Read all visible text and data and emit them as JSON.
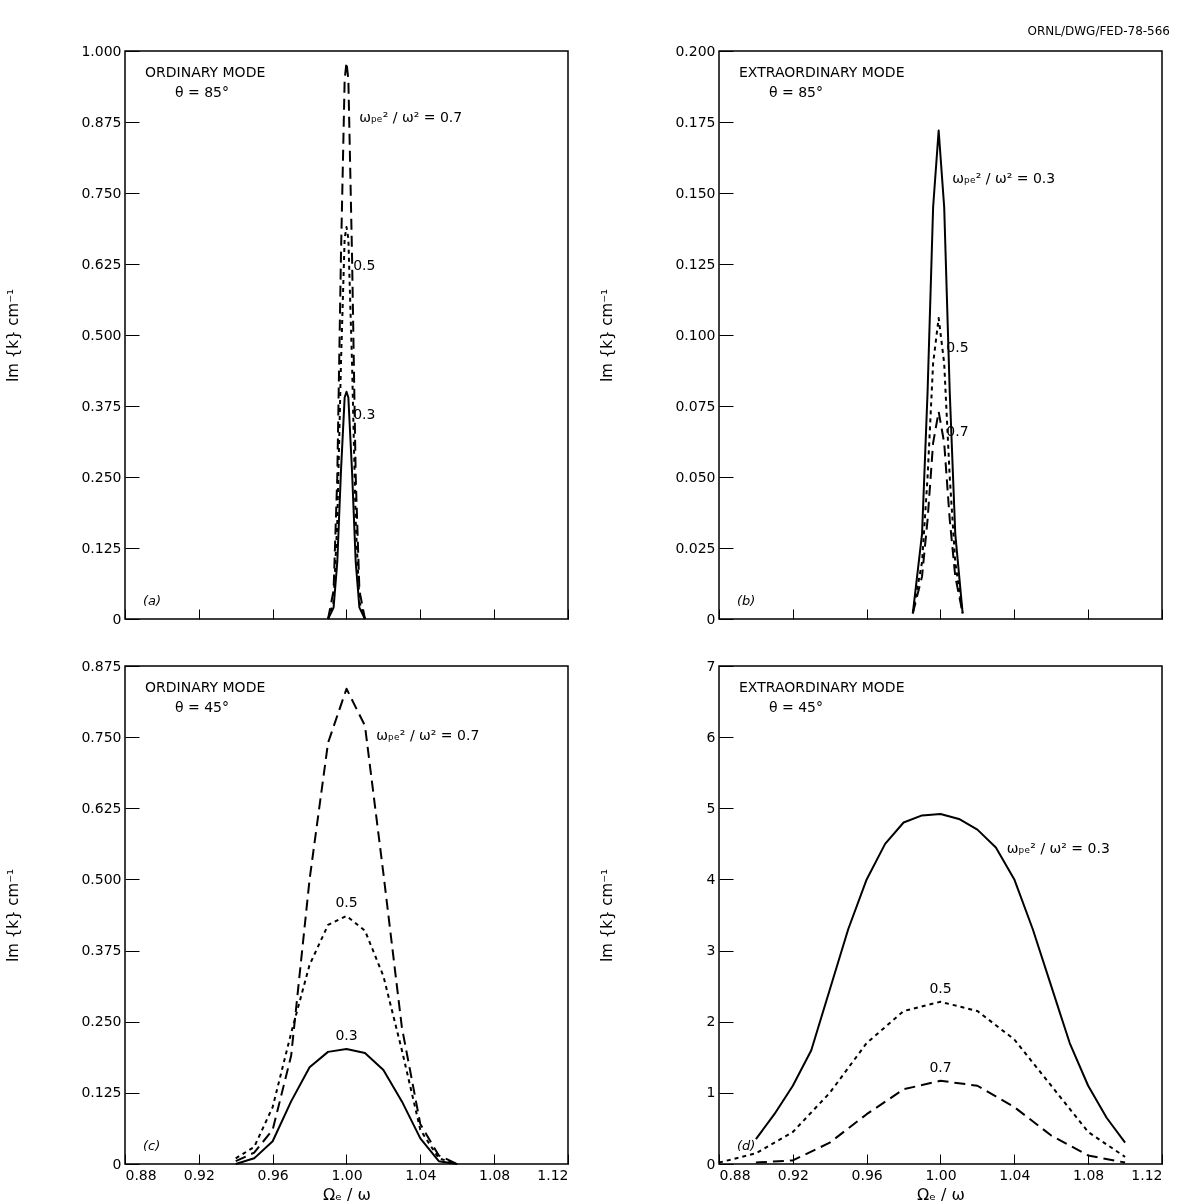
{
  "chart_data": [
    {
      "type": "line",
      "title": "ORDINARY MODE",
      "subtitle": "θ = 85°",
      "ylabel": "Im {k} cm⁻¹",
      "tick_labels": "y",
      "xlim": [
        0.88,
        1.12
      ],
      "xticks": [
        0.88,
        0.92,
        0.96,
        1,
        1.04,
        1.08,
        1.12
      ],
      "ylim": [
        0,
        1
      ],
      "yticks": [
        0,
        0.125,
        {
          "value": 0.25,
          "label": "0.250"
        },
        0.375,
        {
          "value": 0.5,
          "label": "0.500"
        },
        0.625,
        {
          "value": 0.75,
          "label": "0.750"
        },
        0.875,
        {
          "value": 1,
          "label": "1.000"
        }
      ],
      "x": [
        0.99,
        0.993,
        0.995,
        0.997,
        0.999,
        1.0,
        1.001,
        1.003,
        1.005,
        1.007,
        1.01
      ],
      "series": [
        {
          "name": "0.3",
          "color": "#000000",
          "line_style": "solid",
          "values": [
            0,
            0.02,
            0.1,
            0.26,
            0.39,
            0.4,
            0.39,
            0.26,
            0.1,
            0.02,
            0
          ]
        },
        {
          "name": "0.5",
          "color": "#000000",
          "line_style": "dotted",
          "values": [
            0,
            0.03,
            0.17,
            0.45,
            0.67,
            0.69,
            0.67,
            0.45,
            0.17,
            0.03,
            0
          ]
        },
        {
          "name": "ωₚₑ² / ω² = 0.7",
          "color": "#000000",
          "line_style": "dashed",
          "values": [
            0,
            0.05,
            0.25,
            0.64,
            0.95,
            0.98,
            0.95,
            0.64,
            0.25,
            0.05,
            0
          ]
        }
      ],
      "annotations": [
        "(a)"
      ]
    },
    {
      "type": "line",
      "title": "EXTRAORDINARY MODE",
      "subtitle": "θ = 85°",
      "ylabel": "Im {k} cm⁻¹",
      "tick_labels": "y",
      "xlim": [
        0.88,
        1.12
      ],
      "xticks": [
        0.88,
        0.92,
        0.96,
        1,
        1.04,
        1.08,
        1.12
      ],
      "ylim": [
        0,
        0.2
      ],
      "yticks": [
        0,
        0.025,
        {
          "value": 0.05,
          "label": "0.050"
        },
        0.075,
        {
          "value": 0.1,
          "label": "0.100"
        },
        0.125,
        {
          "value": 0.15,
          "label": "0.150"
        },
        0.175,
        {
          "value": 0.2,
          "label": "0.200"
        }
      ],
      "x": [
        0.985,
        0.99,
        0.993,
        0.996,
        0.999,
        1.002,
        1.005,
        1.008,
        1.012
      ],
      "series": [
        {
          "name": "ωₚₑ² / ω² = 0.3",
          "color": "#000000",
          "line_style": "solid",
          "values": [
            0.002,
            0.03,
            0.08,
            0.145,
            0.172,
            0.145,
            0.08,
            0.03,
            0.002
          ]
        },
        {
          "name": "0.5",
          "color": "#000000",
          "line_style": "dotted",
          "values": [
            0.002,
            0.02,
            0.05,
            0.09,
            0.106,
            0.09,
            0.05,
            0.02,
            0.002
          ]
        },
        {
          "name": "0.7",
          "color": "#000000",
          "line_style": "dashed",
          "values": [
            0.002,
            0.015,
            0.035,
            0.062,
            0.073,
            0.062,
            0.035,
            0.015,
            0.002
          ]
        }
      ],
      "annotations": [
        "(b)",
        "ORNL/DWG/FED-78-566"
      ]
    },
    {
      "type": "line",
      "title": "ORDINARY MODE",
      "subtitle": "θ = 45°",
      "xlabel": "Ωₑ / ω",
      "ylabel": "Im {k} cm⁻¹",
      "xlim": [
        0.88,
        1.12
      ],
      "xticks": [
        0.88,
        0.92,
        0.96,
        {
          "value": 1,
          "label": "1.00"
        },
        1.04,
        1.08,
        1.12
      ],
      "ylim": [
        0,
        0.875
      ],
      "yticks": [
        0,
        0.125,
        {
          "value": 0.25,
          "label": "0.250"
        },
        0.375,
        {
          "value": 0.5,
          "label": "0.500"
        },
        0.625,
        {
          "value": 0.75,
          "label": "0.750"
        },
        0.875
      ],
      "x": [
        0.94,
        0.95,
        0.96,
        0.97,
        0.98,
        0.99,
        1.0,
        1.01,
        1.02,
        1.03,
        1.04,
        1.05,
        1.06
      ],
      "series": [
        {
          "name": "0.3",
          "color": "#000000",
          "line_style": "solid",
          "values": [
            0,
            0.01,
            0.04,
            0.11,
            0.17,
            0.197,
            0.202,
            0.195,
            0.165,
            0.11,
            0.045,
            0.005,
            0
          ]
        },
        {
          "name": "0.5",
          "color": "#000000",
          "line_style": "dotted",
          "values": [
            0.01,
            0.03,
            0.1,
            0.23,
            0.35,
            0.42,
            0.436,
            0.41,
            0.33,
            0.2,
            0.06,
            0.01,
            0
          ]
        },
        {
          "name": "ωₚₑ² / ω² = 0.7",
          "color": "#000000",
          "line_style": "dashed",
          "values": [
            0.005,
            0.02,
            0.06,
            0.19,
            0.5,
            0.74,
            0.835,
            0.77,
            0.51,
            0.24,
            0.07,
            0.015,
            0
          ]
        }
      ],
      "annotations": [
        "(c)"
      ]
    },
    {
      "type": "line",
      "title": "EXTRAORDINARY MODE",
      "subtitle": "θ = 45°",
      "xlabel": "Ωₑ / ω",
      "ylabel": "Im {k} cm⁻¹",
      "xlim": [
        0.88,
        1.12
      ],
      "xticks": [
        0.88,
        0.92,
        0.96,
        {
          "value": 1,
          "label": "1.00"
        },
        1.04,
        1.08,
        1.12
      ],
      "ylim": [
        0,
        7
      ],
      "yticks": [
        0,
        1,
        2,
        3,
        4,
        5,
        6,
        7
      ],
      "series": [
        {
          "name": "ωₚₑ² / ω² = 0.3",
          "color": "#000000",
          "line_style": "solid",
          "x": [
            0.9,
            0.91,
            0.92,
            0.93,
            0.94,
            0.95,
            0.96,
            0.97,
            0.98,
            0.99,
            1.0,
            1.01,
            1.02,
            1.03,
            1.04,
            1.05,
            1.06,
            1.07,
            1.08,
            1.09,
            1.1
          ],
          "values": [
            0.35,
            0.7,
            1.1,
            1.6,
            2.45,
            3.3,
            4.0,
            4.5,
            4.8,
            4.9,
            4.92,
            4.85,
            4.7,
            4.45,
            4.0,
            3.3,
            2.5,
            1.7,
            1.1,
            0.65,
            0.3
          ]
        },
        {
          "name": "0.5",
          "color": "#000000",
          "line_style": "dotted",
          "x": [
            0.88,
            0.9,
            0.92,
            0.94,
            0.96,
            0.98,
            1.0,
            1.02,
            1.04,
            1.06,
            1.08,
            1.1
          ],
          "values": [
            0.02,
            0.15,
            0.45,
            1.0,
            1.7,
            2.15,
            2.28,
            2.15,
            1.75,
            1.1,
            0.45,
            0.1
          ]
        },
        {
          "name": "0.7",
          "color": "#000000",
          "line_style": "dashed",
          "x": [
            0.9,
            0.92,
            0.94,
            0.96,
            0.98,
            1.0,
            1.02,
            1.04,
            1.06,
            1.08,
            1.1
          ],
          "values": [
            0.02,
            0.05,
            0.3,
            0.7,
            1.05,
            1.17,
            1.1,
            0.8,
            0.4,
            0.12,
            0.02
          ]
        }
      ],
      "annotations": [
        "(d)"
      ]
    }
  ]
}
